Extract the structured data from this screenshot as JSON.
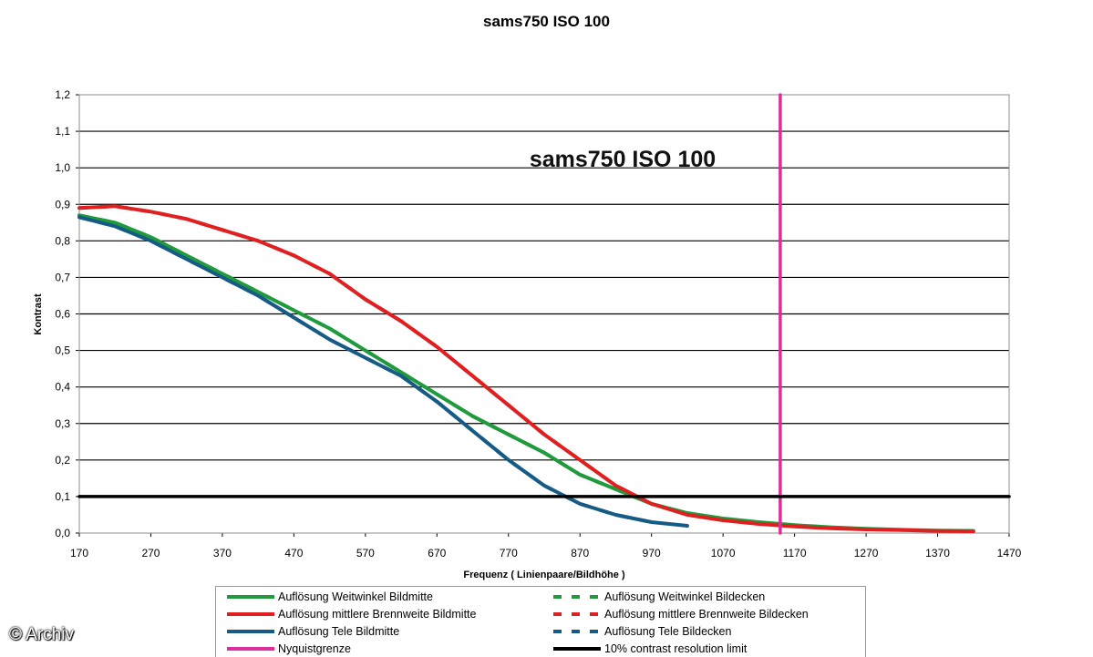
{
  "title": "sams750 ISO 100",
  "watermark": "© Archiv",
  "colors": {
    "green": "#1f9a3c",
    "red": "#e02020",
    "blue": "#155b86",
    "magenta": "#dd2d9a",
    "black": "#000000"
  },
  "chart_data": {
    "type": "line",
    "title": "sams750 ISO 100",
    "inner_title": "sams750 ISO 100",
    "xlabel": "Frequenz ( Linienpaare/Bildhöhe )",
    "ylabel": "Kontrast",
    "xlim": [
      170,
      1470
    ],
    "ylim": [
      0,
      1.2
    ],
    "x_ticks": [
      170,
      270,
      370,
      470,
      570,
      670,
      770,
      870,
      970,
      1070,
      1170,
      1270,
      1370,
      1470
    ],
    "y_ticks": [
      "0,0",
      "0,1",
      "0,2",
      "0,3",
      "0,4",
      "0,5",
      "0,6",
      "0,7",
      "0,8",
      "0,9",
      "1,0",
      "1,1",
      "1,2"
    ],
    "grid": "horizontal",
    "series": [
      {
        "name": "Auflösung Weitwinkel Bildmitte",
        "color": "#1f9a3c",
        "style": "solid",
        "x": [
          170,
          220,
          270,
          320,
          370,
          420,
          470,
          520,
          570,
          620,
          670,
          720,
          770,
          820,
          870,
          920,
          970,
          1020,
          1070,
          1120,
          1170,
          1220,
          1270,
          1320,
          1370,
          1420
        ],
        "y": [
          0.87,
          0.85,
          0.81,
          0.76,
          0.71,
          0.66,
          0.61,
          0.56,
          0.5,
          0.44,
          0.38,
          0.32,
          0.27,
          0.22,
          0.16,
          0.12,
          0.08,
          0.055,
          0.04,
          0.03,
          0.022,
          0.016,
          0.012,
          0.009,
          0.007,
          0.006
        ]
      },
      {
        "name": "Auflösung mittlere Brennweite Bildmitte",
        "color": "#e02020",
        "style": "solid",
        "x": [
          170,
          220,
          270,
          320,
          370,
          420,
          470,
          520,
          570,
          620,
          670,
          720,
          770,
          820,
          870,
          920,
          970,
          1020,
          1070,
          1120,
          1170,
          1220,
          1270,
          1320,
          1370,
          1420
        ],
        "y": [
          0.89,
          0.895,
          0.88,
          0.86,
          0.83,
          0.8,
          0.76,
          0.71,
          0.64,
          0.58,
          0.51,
          0.43,
          0.35,
          0.27,
          0.2,
          0.13,
          0.08,
          0.05,
          0.035,
          0.025,
          0.018,
          0.013,
          0.01,
          0.008,
          0.006,
          0.005
        ]
      },
      {
        "name": "Auflösung Tele Bildmitte",
        "color": "#155b86",
        "style": "solid",
        "x": [
          170,
          220,
          270,
          320,
          370,
          420,
          470,
          520,
          570,
          620,
          670,
          720,
          770,
          820,
          870,
          920,
          970,
          1020
        ],
        "y": [
          0.865,
          0.84,
          0.8,
          0.75,
          0.7,
          0.65,
          0.59,
          0.53,
          0.48,
          0.43,
          0.36,
          0.28,
          0.2,
          0.13,
          0.08,
          0.05,
          0.03,
          0.02
        ]
      },
      {
        "name": "Nyquistgrenze",
        "color": "#dd2d9a",
        "style": "solid",
        "x": [
          1150,
          1150
        ],
        "y": [
          0,
          1.2
        ]
      },
      {
        "name": "Auflösung Weitwinkel Bildecken",
        "color": "#1f9a3c",
        "style": "dashed",
        "x": [
          170,
          220,
          270,
          320,
          370,
          420,
          470,
          520,
          570,
          620,
          670,
          720,
          770,
          820,
          870,
          920,
          970
        ],
        "y": [
          0.87,
          0.85,
          0.81,
          0.76,
          0.71,
          0.66,
          0.61,
          0.56,
          0.5,
          0.44,
          0.38,
          0.32,
          0.27,
          0.22,
          0.16,
          0.12,
          0.08
        ]
      },
      {
        "name": "Auflösung mittlere Brennweite Bildecken",
        "color": "#e02020",
        "style": "dashed",
        "x": [
          170,
          220,
          270,
          320,
          370,
          420,
          470,
          520,
          570,
          620,
          670,
          720,
          770,
          820,
          870,
          920,
          970,
          1010
        ],
        "y": [
          0.89,
          0.895,
          0.88,
          0.86,
          0.83,
          0.8,
          0.76,
          0.71,
          0.64,
          0.58,
          0.51,
          0.43,
          0.35,
          0.27,
          0.2,
          0.13,
          0.08,
          0.06
        ]
      },
      {
        "name": "Auflösung Tele Bildecken",
        "color": "#155b86",
        "style": "dashed",
        "x": [
          170,
          220,
          270,
          320,
          370,
          420,
          470,
          520,
          570,
          620,
          670,
          720,
          770,
          820,
          870,
          920,
          970
        ],
        "y": [
          0.865,
          0.84,
          0.8,
          0.75,
          0.7,
          0.65,
          0.59,
          0.53,
          0.48,
          0.43,
          0.36,
          0.28,
          0.2,
          0.13,
          0.08,
          0.05,
          0.03
        ]
      },
      {
        "name": "10% contrast resolution limit",
        "color": "#000000",
        "style": "solid",
        "x": [
          170,
          1470
        ],
        "y": [
          0.1,
          0.1
        ]
      }
    ]
  },
  "legend": {
    "items": [
      {
        "label": "Auflösung Weitwinkel Bildmitte",
        "color": "#1f9a3c",
        "style": "solid"
      },
      {
        "label": "Auflösung Weitwinkel Bildecken",
        "color": "#1f9a3c",
        "style": "dashed"
      },
      {
        "label": "Auflösung mittlere Brennweite Bildmitte",
        "color": "#e02020",
        "style": "solid"
      },
      {
        "label": "Auflösung mittlere Brennweite Bildecken",
        "color": "#e02020",
        "style": "dashed"
      },
      {
        "label": "Auflösung Tele Bildmitte",
        "color": "#155b86",
        "style": "solid"
      },
      {
        "label": "Auflösung Tele Bildecken",
        "color": "#155b86",
        "style": "dashed"
      },
      {
        "label": "Nyquistgrenze",
        "color": "#dd2d9a",
        "style": "solid"
      },
      {
        "label": "10% contrast resolution limit",
        "color": "#000000",
        "style": "solid"
      }
    ]
  }
}
